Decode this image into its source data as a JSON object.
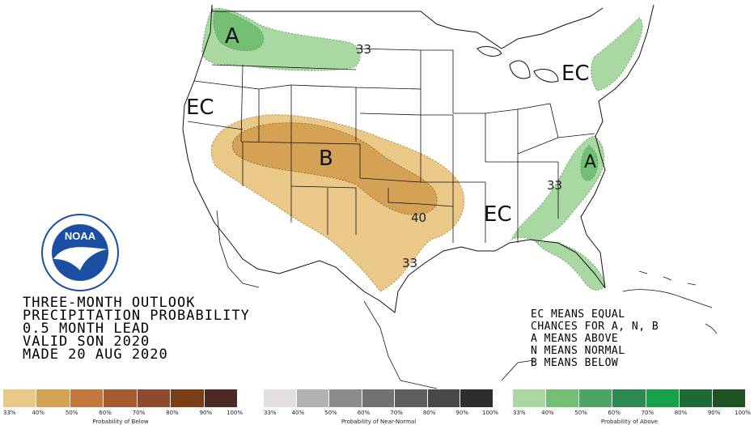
{
  "colors": {
    "below_light": "#e9c888",
    "below_mid": "#d5a155",
    "above_light": "#a9d8a2",
    "above_mid": "#74bf74",
    "border": "#111111",
    "noaa_blue": "#1a4fa3"
  },
  "map_labels": {
    "a_northwest": "A",
    "ec_west": "EC",
    "b_center": "B",
    "ec_northeast": "EC",
    "a_southeast": "A",
    "ec_south": "EC"
  },
  "contour_labels": {
    "c33_north": "33",
    "c40_plains": "40",
    "c33_texas": "33",
    "c33_southeast": "33"
  },
  "logo": {
    "text": "NOAA",
    "ring_top": "NATIONAL OCEANIC AND ATMOSPHERIC ADMINISTRATION",
    "ring_bottom": "U.S. DEPARTMENT OF COMMERCE"
  },
  "title": {
    "line1": "THREE-MONTH OUTLOOK",
    "line2": "PRECIPITATION PROBABILITY",
    "line3": "0.5 MONTH LEAD",
    "line4": "VALID SON 2020",
    "line5": "MADE 20 AUG 2020"
  },
  "legend": {
    "line1": "EC MEANS EQUAL",
    "line2": "CHANCES FOR A, N, B",
    "line3": "A MEANS ABOVE",
    "line4": "N MEANS NORMAL",
    "line5": "B MEANS BELOW"
  },
  "colorbars": [
    {
      "caption": "Probability of Below",
      "ticks": [
        "33%",
        "40%",
        "50%",
        "60%",
        "70%",
        "80%",
        "90%",
        "100%"
      ],
      "colors": [
        "#e9c888",
        "#d5a155",
        "#c3773b",
        "#a65a30",
        "#8e4a2c",
        "#7a3d16",
        "#4e2a26"
      ]
    },
    {
      "caption": "Probability of Near-Normal",
      "ticks": [
        "33%",
        "40%",
        "50%",
        "60%",
        "70%",
        "80%",
        "90%",
        "100%"
      ],
      "colors": [
        "#e3dee0",
        "#b3b0b2",
        "#8e8d8d",
        "#737272",
        "#5f5e5e",
        "#4a4949",
        "#2d2d2d"
      ]
    },
    {
      "caption": "Probability of Above",
      "ticks": [
        "33%",
        "40%",
        "50%",
        "60%",
        "70%",
        "80%",
        "90%",
        "100%"
      ],
      "colors": [
        "#a9d8a2",
        "#74bf74",
        "#4ea463",
        "#2f8a52",
        "#17a24a",
        "#1c6b37",
        "#1f5223"
      ]
    }
  ]
}
